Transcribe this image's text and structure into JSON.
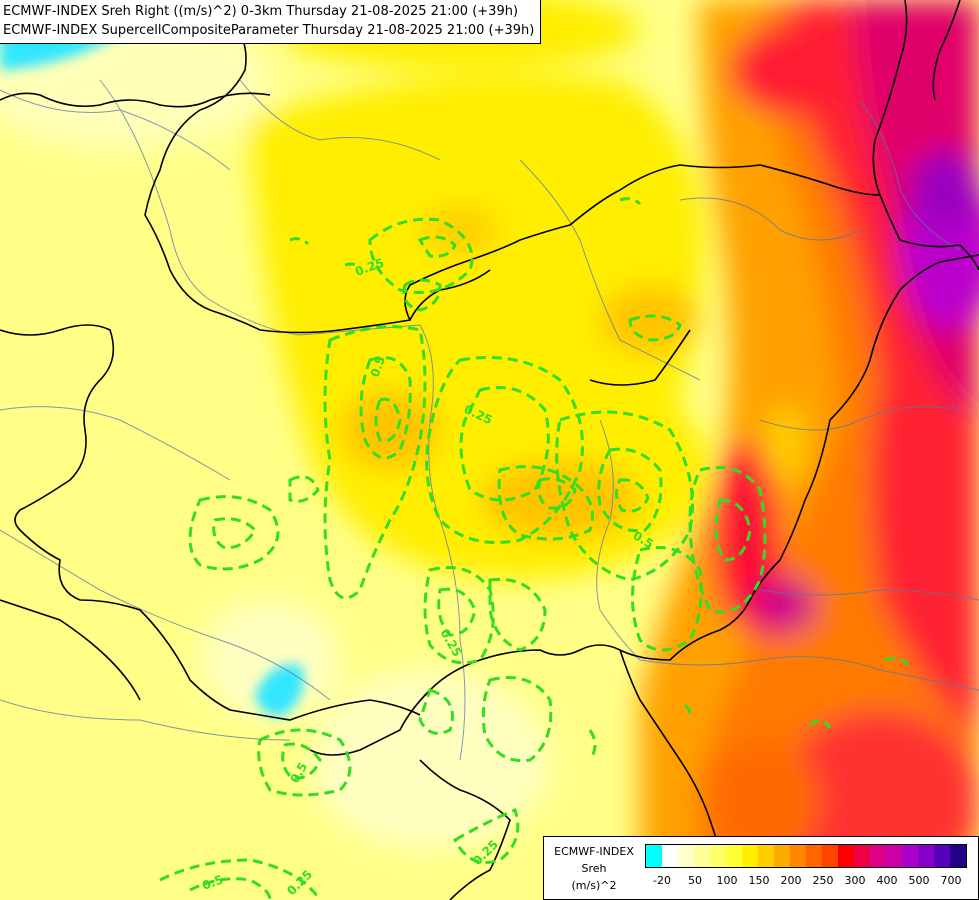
{
  "title": {
    "line1": "ECMWF-INDEX Sreh Right ((m/s)^2) 0-3km Thursday 21-08-2025 21:00 (+39h)",
    "line2": "ECMWF-INDEX SupercellCompositeParameter Thursday 21-08-2025 21:00 (+39h)"
  },
  "contour_labels": [
    "0.25",
    "0.5",
    "0.25",
    "0.5",
    "0.25",
    "0.5",
    "0.25",
    "0.5",
    "0.25"
  ],
  "legend": {
    "line1": "ECMWF-INDEX",
    "line2": "Sreh",
    "line3": "(m/s)^2",
    "ticks": [
      "-20",
      "50",
      "100",
      "150",
      "200",
      "250",
      "300",
      "400",
      "500",
      "700"
    ],
    "colors": [
      "#00ffff",
      "#ffffff",
      "#ffffcc",
      "#ffff99",
      "#ffff66",
      "#ffff33",
      "#ffee00",
      "#ffcc00",
      "#ffaa00",
      "#ff8800",
      "#ff6600",
      "#ff4400",
      "#ff0000",
      "#ee0044",
      "#dd0088",
      "#cc00aa",
      "#aa00cc",
      "#8800cc",
      "#5500bb",
      "#220088"
    ]
  },
  "colors": {
    "field_low": "#ffff80",
    "field_mid": "#ffee00",
    "field_high": "#ff8800",
    "field_peak": "#ff1a4a",
    "field_max": "#cc00cc",
    "scp_contour": "#33dd22",
    "border": "#000000",
    "river": "#5577aa"
  }
}
